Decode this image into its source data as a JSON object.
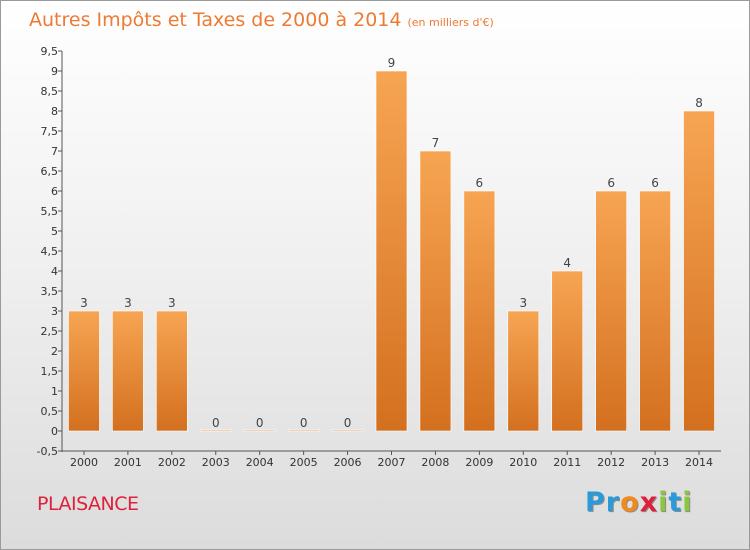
{
  "title": "Autres Impôts et Taxes de 2000 à 2014",
  "subtitle": "(en milliers d'€)",
  "place": "PLAISANCE",
  "logo": {
    "letters": [
      "P",
      "r",
      "o",
      "x",
      "i",
      "t",
      "i"
    ],
    "colors": [
      "#2a9ad8",
      "#2a9ad8",
      "#f08a1c",
      "#e0203a",
      "#8cc63f",
      "#2a9ad8",
      "#8cc63f"
    ]
  },
  "colors": {
    "bar_top": "#f7a553",
    "bar_bottom": "#d3701f",
    "title": "#ee7a33",
    "place": "#e0203a"
  },
  "chart_data": {
    "type": "bar",
    "categories": [
      "2000",
      "2001",
      "2002",
      "2003",
      "2004",
      "2005",
      "2006",
      "2007",
      "2008",
      "2009",
      "2010",
      "2011",
      "2012",
      "2013",
      "2014"
    ],
    "values": [
      3,
      3,
      3,
      0,
      0,
      0,
      0,
      9,
      7,
      6,
      3,
      4,
      6,
      6,
      8
    ],
    "value_labels": [
      "3",
      "3",
      "3",
      "0",
      "0",
      "0",
      "0",
      "9",
      "7",
      "6",
      "3",
      "4",
      "6",
      "6",
      "8"
    ],
    "yticks": [
      -0.5,
      0,
      0.5,
      1,
      1.5,
      2,
      2.5,
      3,
      3.5,
      4,
      4.5,
      5,
      5.5,
      6,
      6.5,
      7,
      7.5,
      8,
      8.5,
      9,
      9.5
    ],
    "ytick_labels": [
      "-0,5",
      "0",
      "0,5",
      "1",
      "1,5",
      "2",
      "2,5",
      "3",
      "3,5",
      "4",
      "4,5",
      "5",
      "5,5",
      "6",
      "6,5",
      "7",
      "7,5",
      "8",
      "8,5",
      "9",
      "9,5"
    ],
    "ylim": [
      -0.5,
      9.5
    ],
    "grid": false,
    "legend": "none"
  }
}
